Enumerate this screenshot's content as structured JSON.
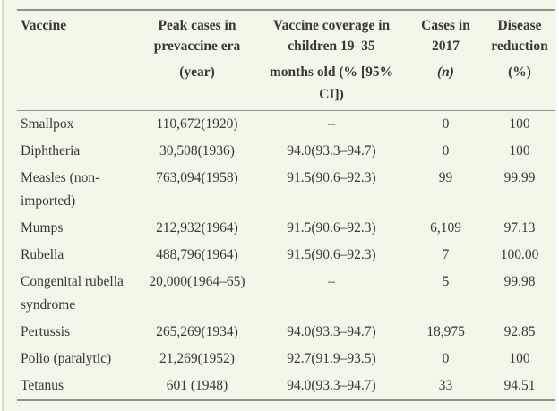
{
  "colors": {
    "background": "#f1f8ea",
    "accent_border": "#cfe7c0",
    "rule": "#8f8f8f",
    "text": "#3b3731"
  },
  "table": {
    "columns": [
      {
        "key": "vaccine",
        "main": "Vaccine",
        "sub": ""
      },
      {
        "key": "peak",
        "main": "Peak cases in\nprevaccine era",
        "sub": "(year)"
      },
      {
        "key": "coverage",
        "main": "Vaccine coverage in\nchildren 19–35",
        "sub": "months old (% [95%\nCI])"
      },
      {
        "key": "cases2017",
        "main": "Cases in\n2017",
        "sub": "(n)",
        "sub_italic": true
      },
      {
        "key": "reduction",
        "main": "Disease\nreduction",
        "sub": "(%)"
      }
    ],
    "rows": [
      {
        "vaccine": "Smallpox",
        "peak": "110,672(1920)",
        "coverage": "–",
        "cases2017": "0",
        "reduction": "100"
      },
      {
        "vaccine": "Diphtheria",
        "peak": "30,508(1936)",
        "coverage": "94.0(93.3–94.7)",
        "cases2017": "0",
        "reduction": "100"
      },
      {
        "vaccine": "Measles (non-\nimported)",
        "peak": "763,094(1958)",
        "coverage": "91.5(90.6–92.3)",
        "cases2017": "99",
        "reduction": "99.99"
      },
      {
        "vaccine": "Mumps",
        "peak": "212,932(1964)",
        "coverage": "91.5(90.6–92.3)",
        "cases2017": "6,109",
        "reduction": "97.13"
      },
      {
        "vaccine": "Rubella",
        "peak": "488,796(1964)",
        "coverage": "91.5(90.6–92.3)",
        "cases2017": "7",
        "reduction": "100.00"
      },
      {
        "vaccine": "Congenital rubella\nsyndrome",
        "peak": "20,000(1964–65)",
        "coverage": "–",
        "cases2017": "5",
        "reduction": "99.98"
      },
      {
        "vaccine": "Pertussis",
        "peak": "265,269(1934)",
        "coverage": "94.0(93.3–94.7)",
        "cases2017": "18,975",
        "reduction": "92.85"
      },
      {
        "vaccine": "Polio (paralytic)",
        "peak": "21,269(1952)",
        "coverage": "92.7(91.9–93.5)",
        "cases2017": "0",
        "reduction": "100"
      },
      {
        "vaccine": "Tetanus",
        "peak": "601 (1948)",
        "coverage": "94.0(93.3–94.7)",
        "cases2017": "33",
        "reduction": "94.51"
      }
    ]
  }
}
